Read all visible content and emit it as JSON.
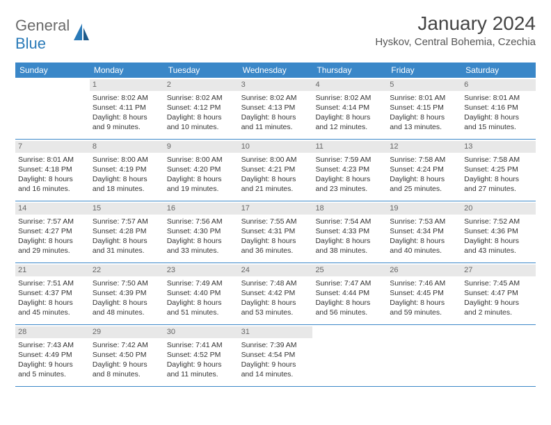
{
  "logo": {
    "general": "General",
    "blue": "Blue"
  },
  "title": "January 2024",
  "location": "Hyskov, Central Bohemia, Czechia",
  "colors": {
    "header_bg": "#3a87c8",
    "header_text": "#ffffff",
    "daynum_bg": "#e8e8e8",
    "daynum_text": "#666666",
    "body_text": "#333333",
    "border": "#3a87c8",
    "logo_blue": "#2a7ab8",
    "logo_gray": "#6a6a6a"
  },
  "weekdays": [
    "Sunday",
    "Monday",
    "Tuesday",
    "Wednesday",
    "Thursday",
    "Friday",
    "Saturday"
  ],
  "weeks": [
    [
      null,
      {
        "n": "1",
        "sr": "8:02 AM",
        "ss": "4:11 PM",
        "dl": "8 hours and 9 minutes."
      },
      {
        "n": "2",
        "sr": "8:02 AM",
        "ss": "4:12 PM",
        "dl": "8 hours and 10 minutes."
      },
      {
        "n": "3",
        "sr": "8:02 AM",
        "ss": "4:13 PM",
        "dl": "8 hours and 11 minutes."
      },
      {
        "n": "4",
        "sr": "8:02 AM",
        "ss": "4:14 PM",
        "dl": "8 hours and 12 minutes."
      },
      {
        "n": "5",
        "sr": "8:01 AM",
        "ss": "4:15 PM",
        "dl": "8 hours and 13 minutes."
      },
      {
        "n": "6",
        "sr": "8:01 AM",
        "ss": "4:16 PM",
        "dl": "8 hours and 15 minutes."
      }
    ],
    [
      {
        "n": "7",
        "sr": "8:01 AM",
        "ss": "4:18 PM",
        "dl": "8 hours and 16 minutes."
      },
      {
        "n": "8",
        "sr": "8:00 AM",
        "ss": "4:19 PM",
        "dl": "8 hours and 18 minutes."
      },
      {
        "n": "9",
        "sr": "8:00 AM",
        "ss": "4:20 PM",
        "dl": "8 hours and 19 minutes."
      },
      {
        "n": "10",
        "sr": "8:00 AM",
        "ss": "4:21 PM",
        "dl": "8 hours and 21 minutes."
      },
      {
        "n": "11",
        "sr": "7:59 AM",
        "ss": "4:23 PM",
        "dl": "8 hours and 23 minutes."
      },
      {
        "n": "12",
        "sr": "7:58 AM",
        "ss": "4:24 PM",
        "dl": "8 hours and 25 minutes."
      },
      {
        "n": "13",
        "sr": "7:58 AM",
        "ss": "4:25 PM",
        "dl": "8 hours and 27 minutes."
      }
    ],
    [
      {
        "n": "14",
        "sr": "7:57 AM",
        "ss": "4:27 PM",
        "dl": "8 hours and 29 minutes."
      },
      {
        "n": "15",
        "sr": "7:57 AM",
        "ss": "4:28 PM",
        "dl": "8 hours and 31 minutes."
      },
      {
        "n": "16",
        "sr": "7:56 AM",
        "ss": "4:30 PM",
        "dl": "8 hours and 33 minutes."
      },
      {
        "n": "17",
        "sr": "7:55 AM",
        "ss": "4:31 PM",
        "dl": "8 hours and 36 minutes."
      },
      {
        "n": "18",
        "sr": "7:54 AM",
        "ss": "4:33 PM",
        "dl": "8 hours and 38 minutes."
      },
      {
        "n": "19",
        "sr": "7:53 AM",
        "ss": "4:34 PM",
        "dl": "8 hours and 40 minutes."
      },
      {
        "n": "20",
        "sr": "7:52 AM",
        "ss": "4:36 PM",
        "dl": "8 hours and 43 minutes."
      }
    ],
    [
      {
        "n": "21",
        "sr": "7:51 AM",
        "ss": "4:37 PM",
        "dl": "8 hours and 45 minutes."
      },
      {
        "n": "22",
        "sr": "7:50 AM",
        "ss": "4:39 PM",
        "dl": "8 hours and 48 minutes."
      },
      {
        "n": "23",
        "sr": "7:49 AM",
        "ss": "4:40 PM",
        "dl": "8 hours and 51 minutes."
      },
      {
        "n": "24",
        "sr": "7:48 AM",
        "ss": "4:42 PM",
        "dl": "8 hours and 53 minutes."
      },
      {
        "n": "25",
        "sr": "7:47 AM",
        "ss": "4:44 PM",
        "dl": "8 hours and 56 minutes."
      },
      {
        "n": "26",
        "sr": "7:46 AM",
        "ss": "4:45 PM",
        "dl": "8 hours and 59 minutes."
      },
      {
        "n": "27",
        "sr": "7:45 AM",
        "ss": "4:47 PM",
        "dl": "9 hours and 2 minutes."
      }
    ],
    [
      {
        "n": "28",
        "sr": "7:43 AM",
        "ss": "4:49 PM",
        "dl": "9 hours and 5 minutes."
      },
      {
        "n": "29",
        "sr": "7:42 AM",
        "ss": "4:50 PM",
        "dl": "9 hours and 8 minutes."
      },
      {
        "n": "30",
        "sr": "7:41 AM",
        "ss": "4:52 PM",
        "dl": "9 hours and 11 minutes."
      },
      {
        "n": "31",
        "sr": "7:39 AM",
        "ss": "4:54 PM",
        "dl": "9 hours and 14 minutes."
      },
      null,
      null,
      null
    ]
  ],
  "labels": {
    "sunrise": "Sunrise:",
    "sunset": "Sunset:",
    "daylight": "Daylight:"
  }
}
